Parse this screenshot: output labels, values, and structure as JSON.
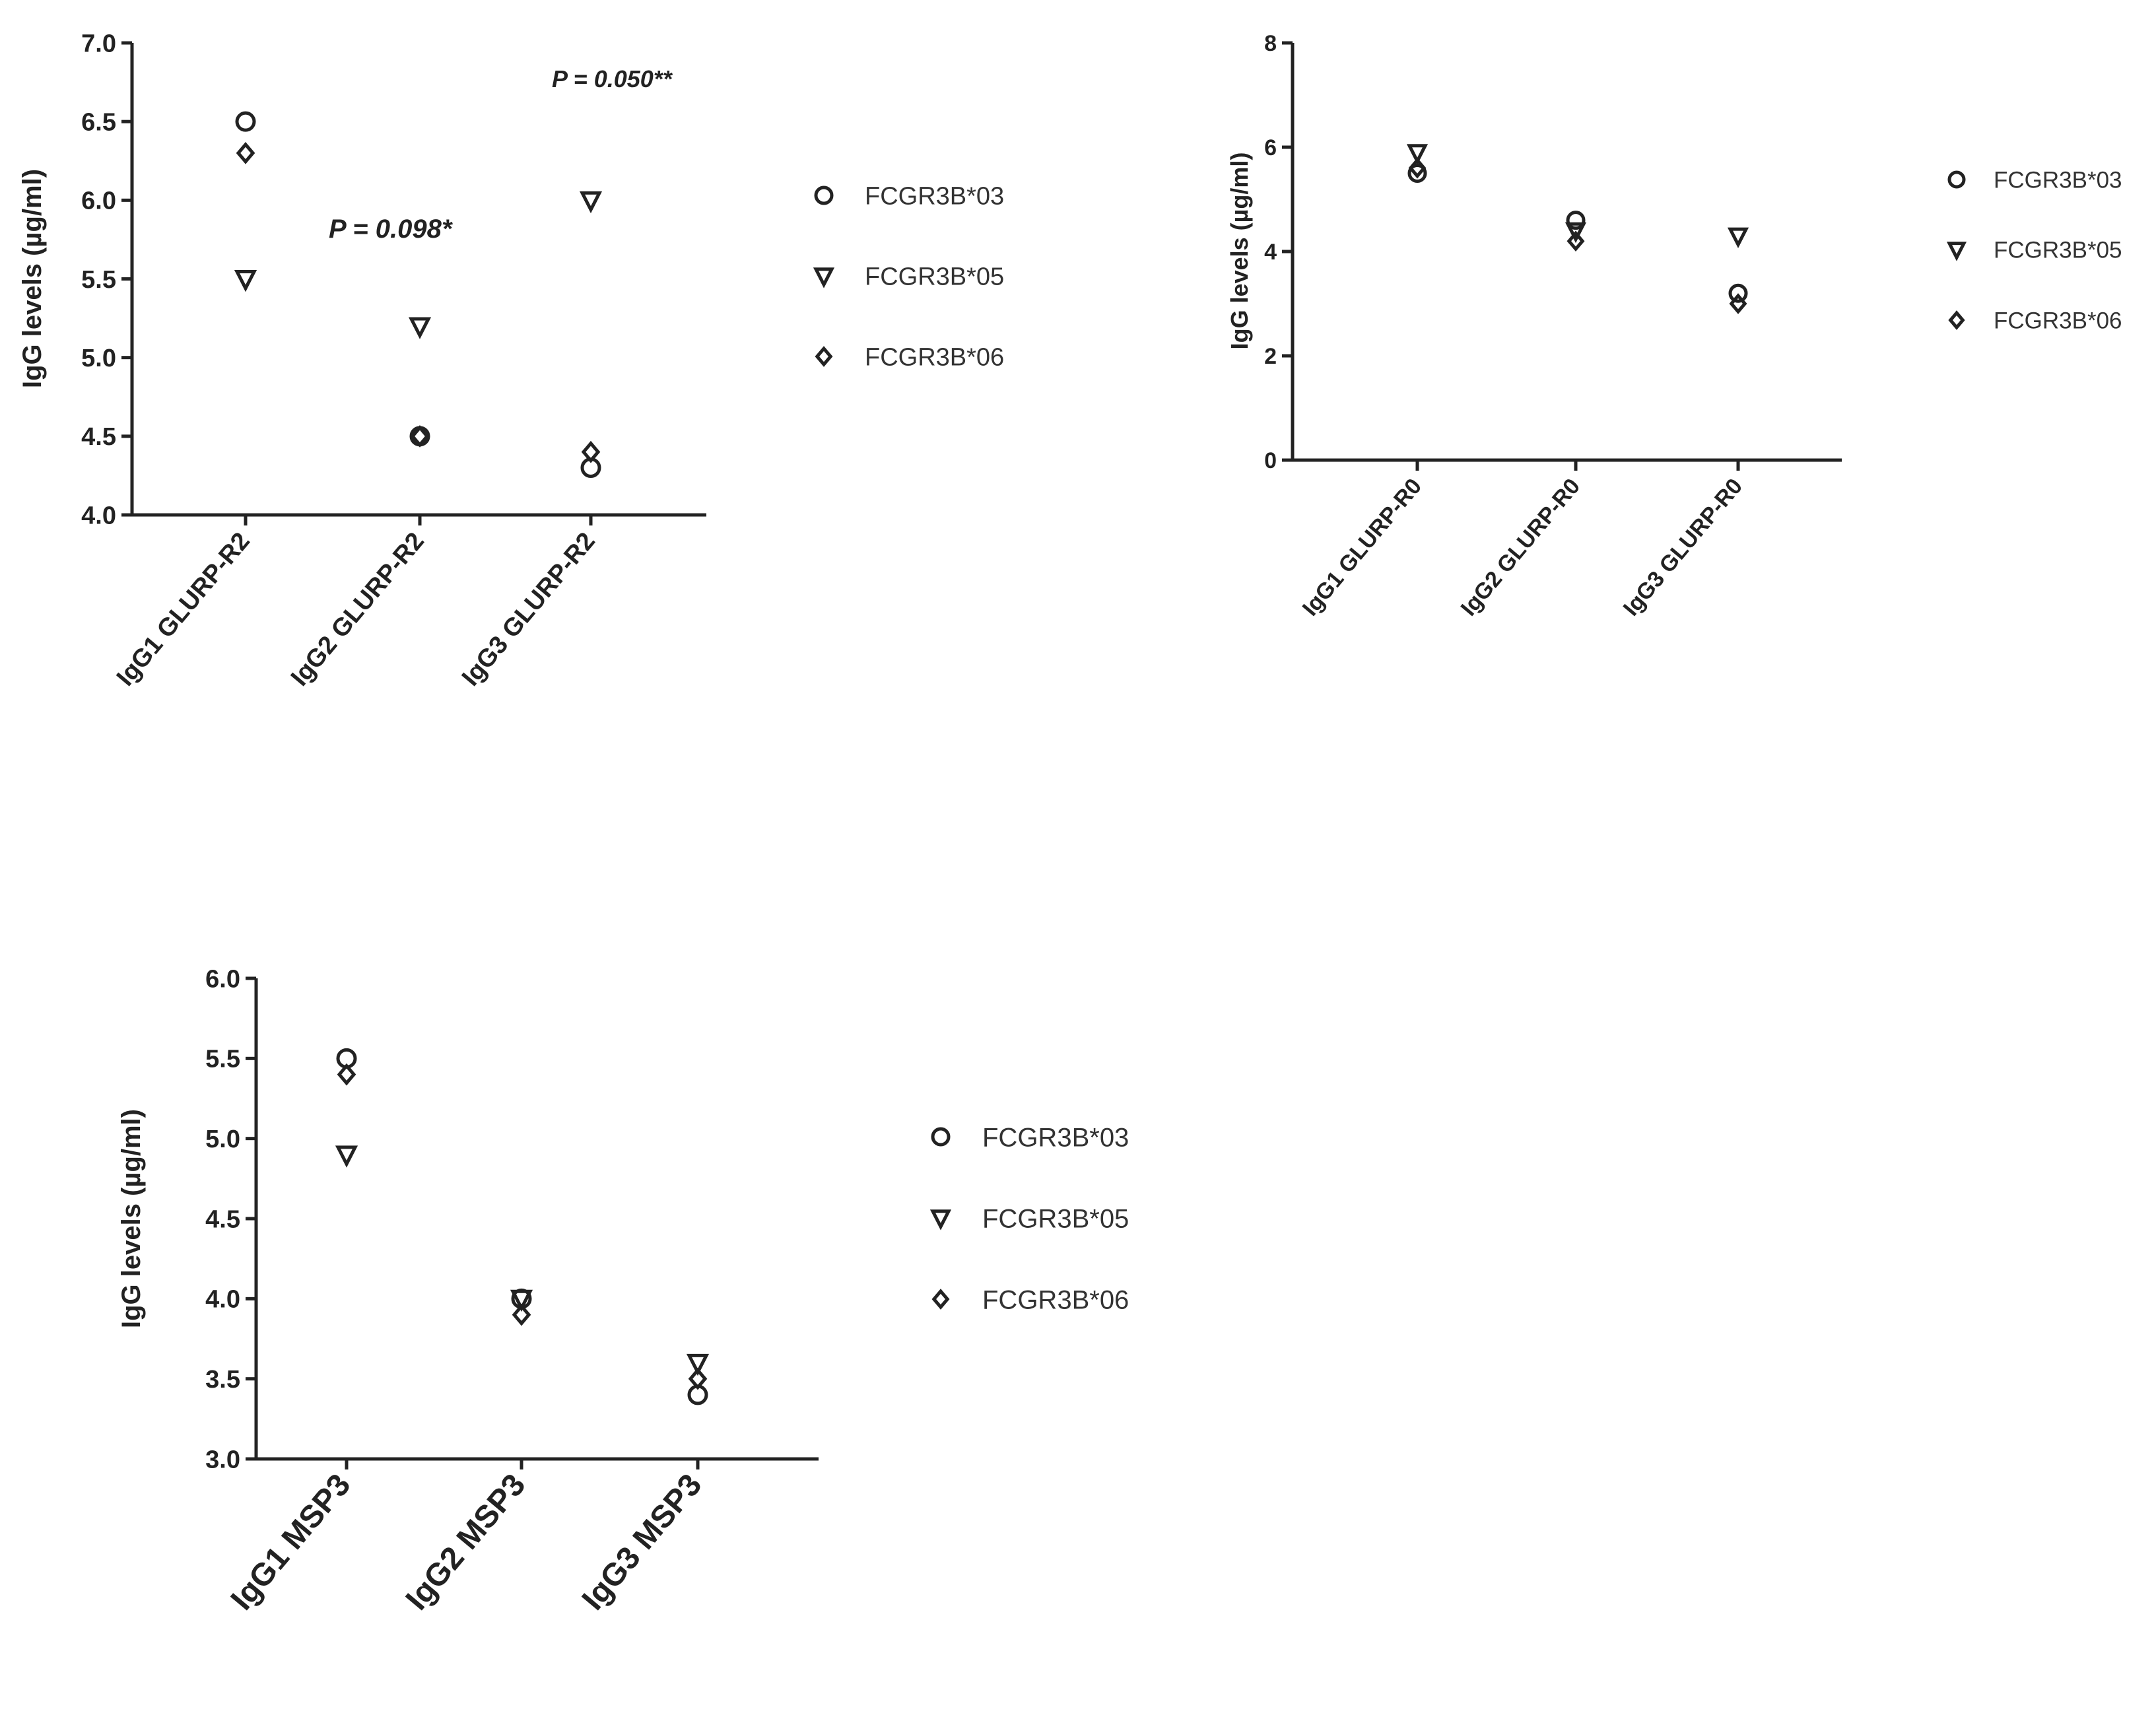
{
  "chart_data": [
    {
      "id": "A",
      "type": "scatter",
      "ylabel": "IgG levels (µg/ml)",
      "ylim": [
        4.0,
        7.0
      ],
      "yticks": [
        "4.0",
        "4.5",
        "5.0",
        "5.5",
        "6.0",
        "6.5",
        "7.0"
      ],
      "categories": [
        "IgG1 GLURP-R2",
        "IgG2 GLURP-R2",
        "IgG3 GLURP-R2"
      ],
      "series": [
        {
          "name": "FCGR3B*03",
          "marker": "circle",
          "values": [
            6.5,
            4.5,
            4.3
          ]
        },
        {
          "name": "FCGR3B*05",
          "marker": "triangle",
          "values": [
            5.5,
            5.2,
            6.0
          ]
        },
        {
          "name": "FCGR3B*06",
          "marker": "diamond",
          "values": [
            6.3,
            4.5,
            4.4
          ]
        }
      ],
      "annotations": [
        {
          "text": "P = 0.098*",
          "category_index": 1
        },
        {
          "text": "P = 0.050**",
          "category_index": 2
        }
      ],
      "legend": "right"
    },
    {
      "id": "B",
      "type": "scatter",
      "ylabel": "IgG levels (µg/ml)",
      "ylim": [
        0,
        8
      ],
      "yticks": [
        "0",
        "2",
        "4",
        "6",
        "8"
      ],
      "categories": [
        "IgG1 GLURP-R0",
        "IgG2 GLURP-R0",
        "IgG3 GLURP-R0"
      ],
      "series": [
        {
          "name": "FCGR3B*03",
          "marker": "circle",
          "values": [
            5.5,
            4.6,
            3.2
          ]
        },
        {
          "name": "FCGR3B*05",
          "marker": "triangle",
          "values": [
            5.9,
            4.4,
            4.3
          ]
        },
        {
          "name": "FCGR3B*06",
          "marker": "diamond",
          "values": [
            5.6,
            4.2,
            3.0
          ]
        }
      ],
      "annotations": [],
      "legend": "right"
    },
    {
      "id": "C",
      "type": "scatter",
      "ylabel": "IgG levels (µg/ml)",
      "ylim": [
        3.0,
        6.0
      ],
      "yticks": [
        "3.0",
        "3.5",
        "4.0",
        "4.5",
        "5.0",
        "5.5",
        "6.0"
      ],
      "categories": [
        "IgG1 MSP3",
        "IgG2 MSP3",
        "IgG3 MSP3"
      ],
      "series": [
        {
          "name": "FCGR3B*03",
          "marker": "circle",
          "values": [
            5.5,
            4.0,
            3.4
          ]
        },
        {
          "name": "FCGR3B*05",
          "marker": "triangle",
          "values": [
            4.9,
            4.0,
            3.6
          ]
        },
        {
          "name": "FCGR3B*06",
          "marker": "diamond",
          "values": [
            5.4,
            3.9,
            3.5
          ]
        }
      ],
      "annotations": [],
      "legend": "right"
    }
  ]
}
